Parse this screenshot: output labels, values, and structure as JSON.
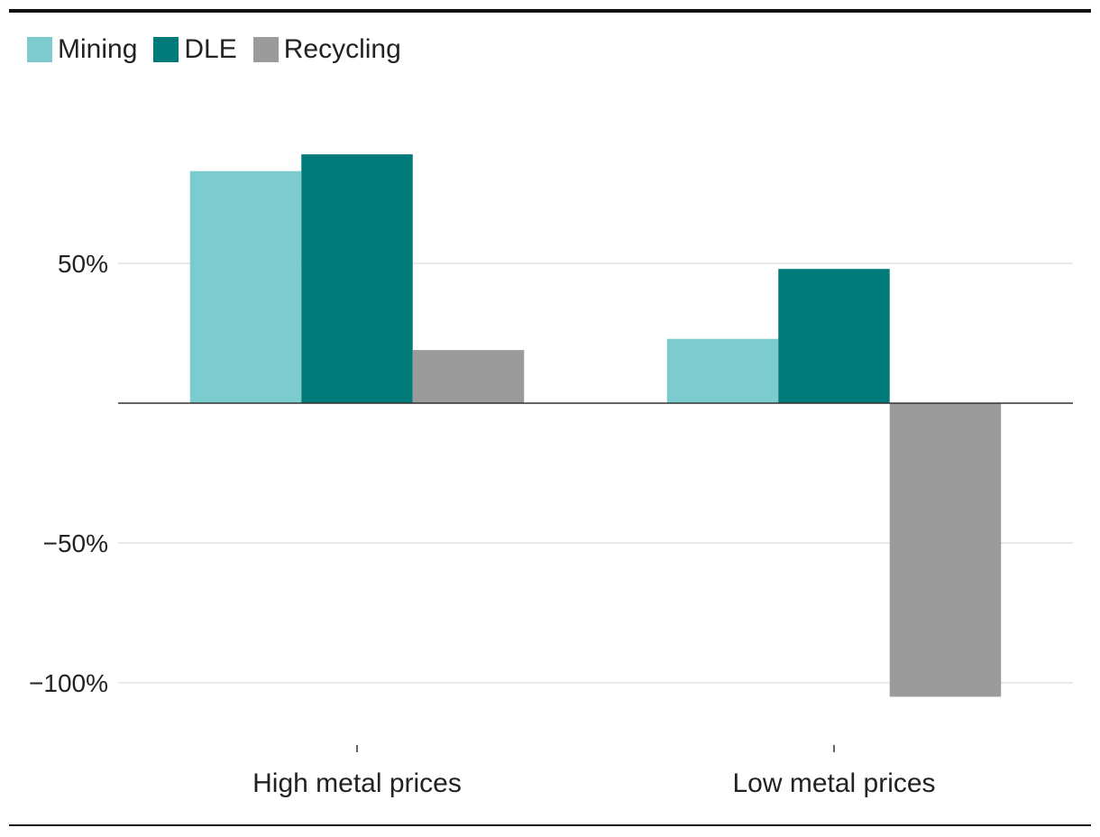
{
  "chart_data": {
    "type": "bar",
    "title": "",
    "xlabel": "",
    "ylabel": "",
    "categories": [
      "High metal prices",
      "Low metal prices"
    ],
    "series": [
      {
        "name": "Mining",
        "color": "#7bcbcf",
        "values": [
          83,
          23
        ]
      },
      {
        "name": "DLE",
        "color": "#007b7a",
        "values": [
          89,
          48
        ]
      },
      {
        "name": "Recycling",
        "color": "#9b9b9b",
        "values": [
          19,
          -105
        ]
      }
    ],
    "yticks": [
      -100,
      -50,
      50
    ],
    "ytick_labels": [
      "−100%",
      "−50%",
      "50%"
    ],
    "ylim": [
      -118,
      95
    ],
    "grid": true,
    "legend_position": "top-left"
  }
}
